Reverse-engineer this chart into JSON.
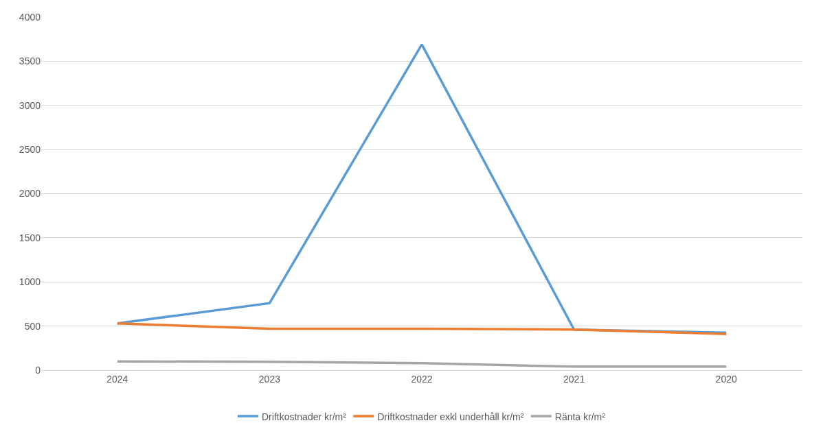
{
  "chart_data": {
    "type": "line",
    "categories": [
      "2024",
      "2023",
      "2022",
      "2021",
      "2020"
    ],
    "series": [
      {
        "name": "Driftkostnader kr/m²",
        "color": "#5b9bd5",
        "values": [
          530,
          760,
          3690,
          460,
          425
        ]
      },
      {
        "name": "Driftkostnader exkl underhåll kr/m²",
        "color": "#ed7d31",
        "values": [
          530,
          470,
          470,
          460,
          410
        ]
      },
      {
        "name": "Ränta kr/m²",
        "color": "#a5a5a5",
        "values": [
          100,
          95,
          80,
          40,
          40
        ]
      }
    ],
    "ylim": [
      0,
      4000
    ],
    "yticks": [
      0,
      500,
      1000,
      1500,
      2000,
      2500,
      3000,
      3500,
      4000
    ],
    "grid": "y",
    "legend": "bottom",
    "marker": "none",
    "line_style": "solid"
  }
}
